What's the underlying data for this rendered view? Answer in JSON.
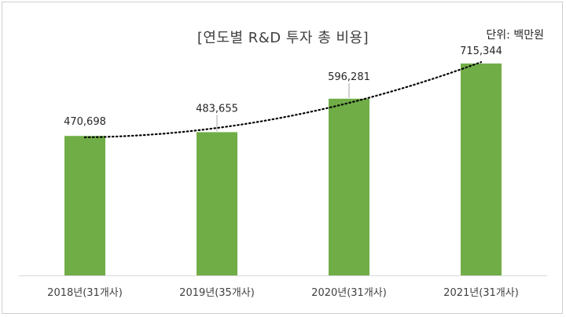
{
  "chart_data": {
    "type": "bar",
    "title": "[연도별 R&D 투자 총 비용]",
    "unit": "단위: 백만원",
    "categories": [
      "2018년(31개사)",
      "2019년(35개사)",
      "2020년(31개사)",
      "2021년(31개사)"
    ],
    "values": [
      470698,
      483655,
      596281,
      715344
    ],
    "value_labels": [
      "470,698",
      "483,655",
      "596,281",
      "715,344"
    ],
    "ylim": [
      0,
      760000
    ],
    "bar_color": "#70ad47",
    "trendline": {
      "type": "polynomial",
      "style": "dotted",
      "color": "#000000"
    },
    "grid": false,
    "legend": "none"
  }
}
